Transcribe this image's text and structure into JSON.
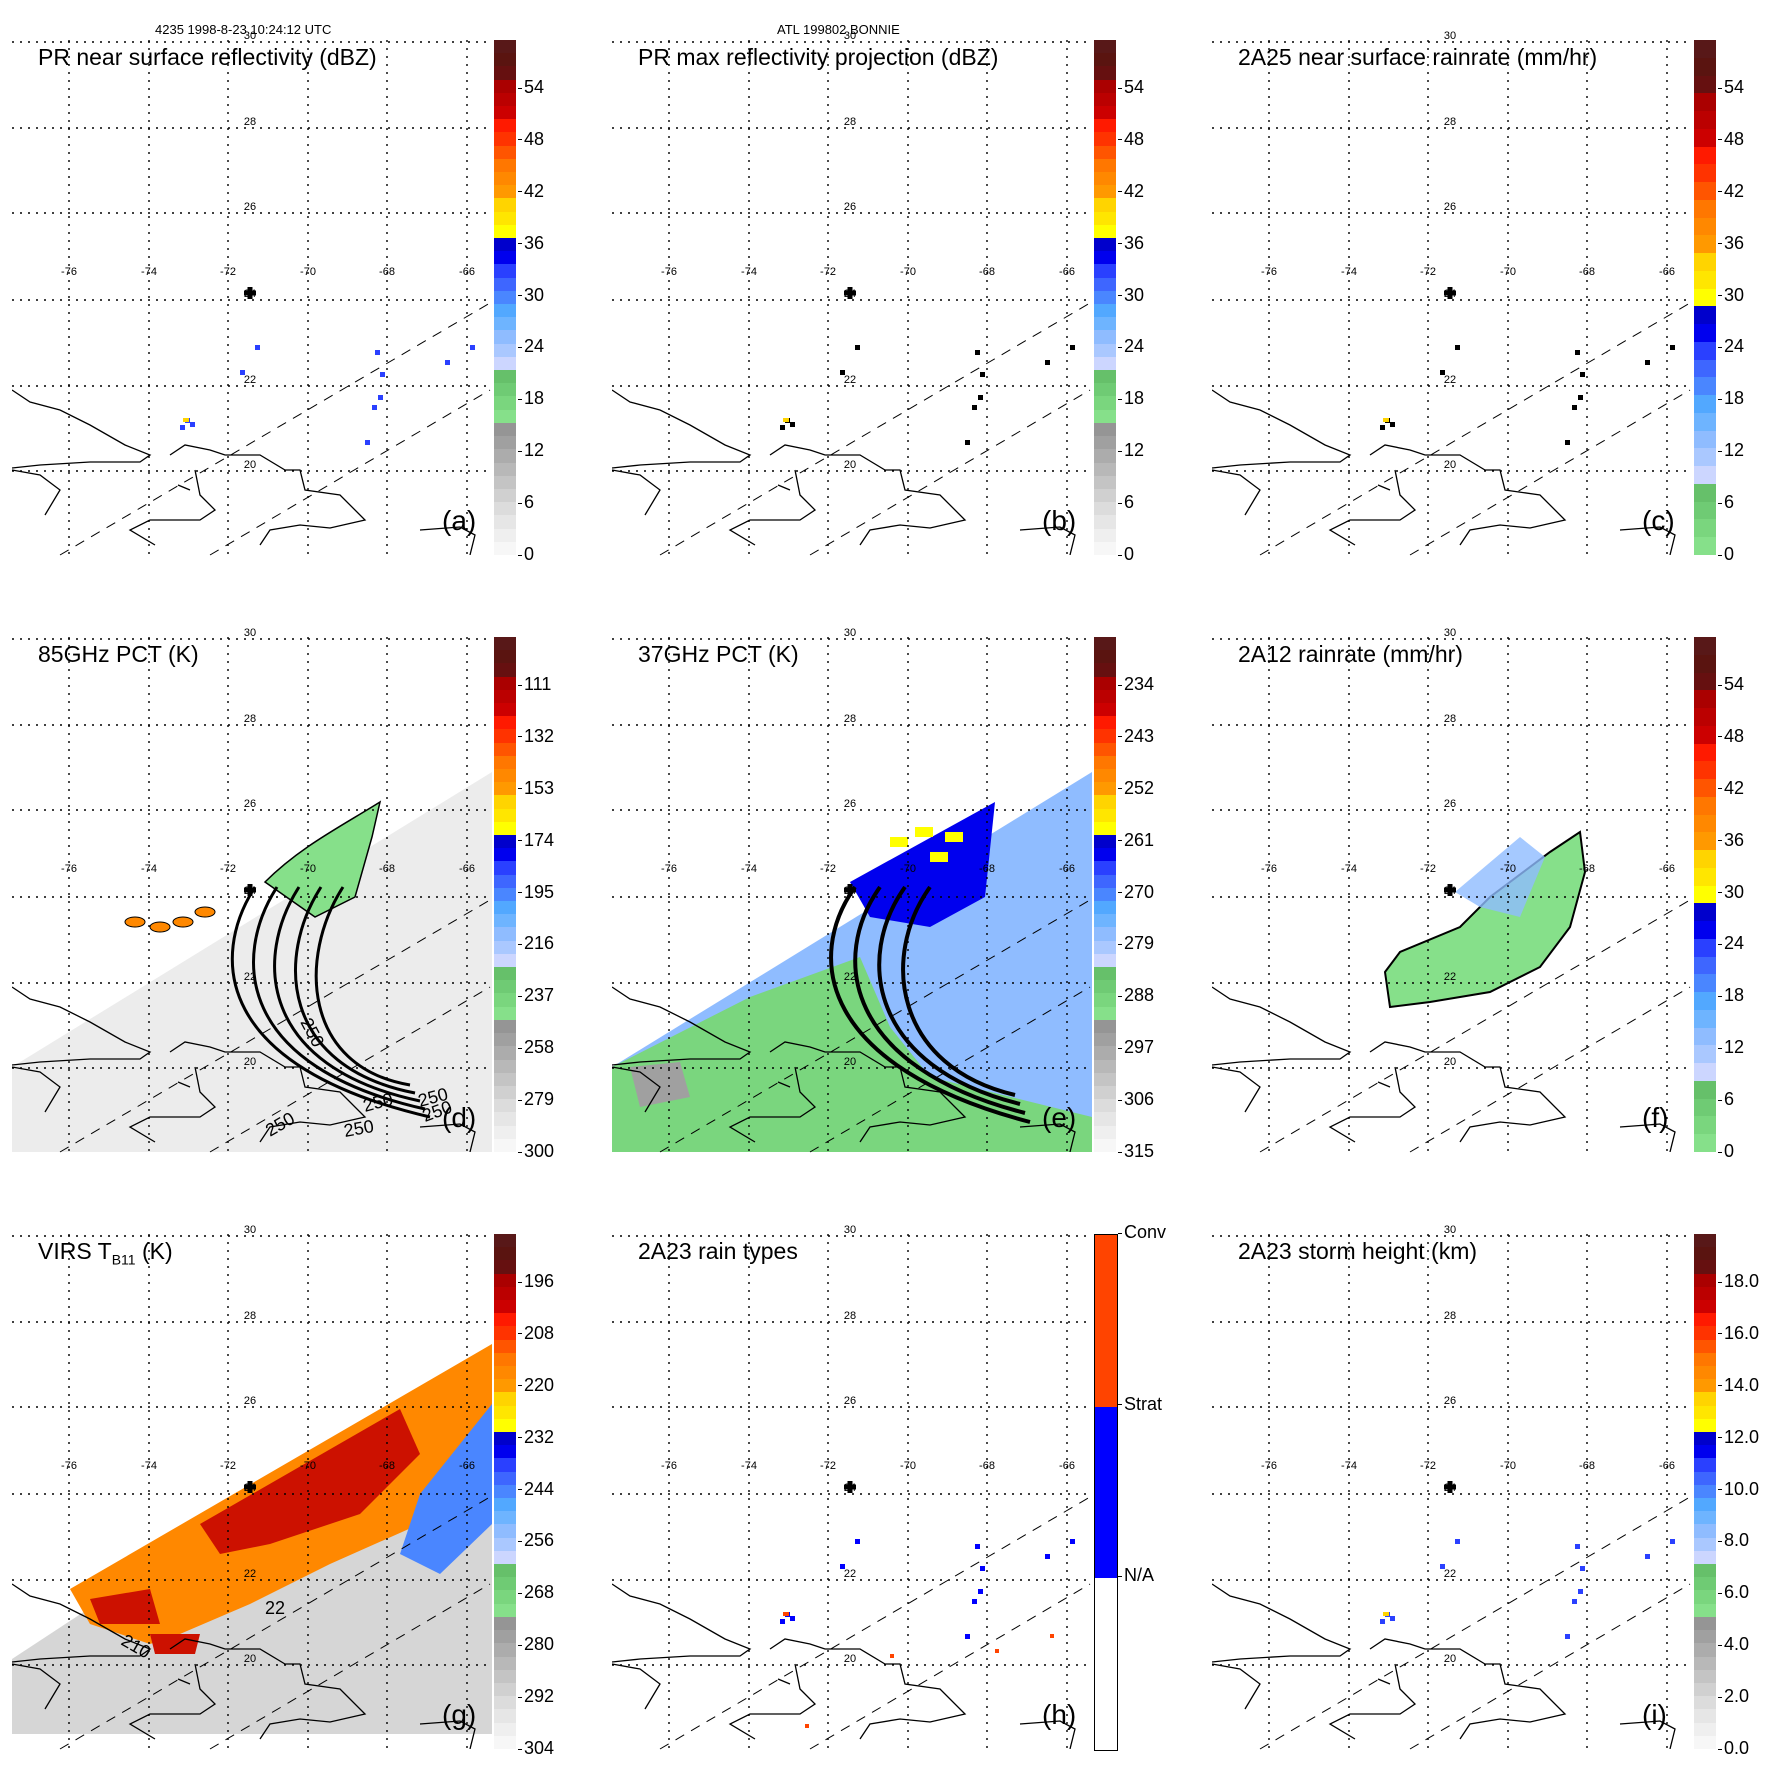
{
  "header": {
    "left": "4235 1998-8-23 10:24:12 UTC",
    "center": "ATL 199802 BONNIE"
  },
  "map": {
    "lon_labels": [
      "-76",
      "-74",
      "-72",
      "-70",
      "-68",
      "-66"
    ],
    "lat_labels": [
      "30",
      "28",
      "26",
      "24",
      "22",
      "20"
    ],
    "center_marker": "storm-center-cross"
  },
  "panels": [
    {
      "id": "a",
      "title": "PR near surface reflectivity (dBZ)",
      "label": "(a)",
      "cbar_ticks": [
        "54",
        "48",
        "42",
        "36",
        "30",
        "24",
        "18",
        "12",
        "6",
        "0"
      ],
      "cbar_type": "standard"
    },
    {
      "id": "b",
      "title": "PR max reflectivity projection (dBZ)",
      "label": "(b)",
      "cbar_ticks": [
        "54",
        "48",
        "42",
        "36",
        "30",
        "24",
        "18",
        "12",
        "6",
        "0"
      ],
      "cbar_type": "standard"
    },
    {
      "id": "c",
      "title": "2A25 near surface rainrate (mm/hr)",
      "label": "(c)",
      "cbar_ticks": [
        "54",
        "48",
        "42",
        "36",
        "30",
        "24",
        "18",
        "12",
        "6",
        "0"
      ],
      "cbar_type": "rain"
    },
    {
      "id": "d",
      "title": "85GHz PCT (K)",
      "label": "(d)",
      "cbar_ticks": [
        "111",
        "132",
        "153",
        "174",
        "195",
        "216",
        "237",
        "258",
        "279",
        "300"
      ],
      "cbar_type": "standard",
      "contour_labels": [
        "250",
        "250",
        "250",
        "250",
        "250",
        "250"
      ]
    },
    {
      "id": "e",
      "title": "37GHz PCT (K)",
      "label": "(e)",
      "cbar_ticks": [
        "234",
        "243",
        "252",
        "261",
        "270",
        "279",
        "288",
        "297",
        "306",
        "315"
      ],
      "cbar_type": "standard"
    },
    {
      "id": "f",
      "title": "2A12 rainrate (mm/hr)",
      "label": "(f)",
      "cbar_ticks": [
        "54",
        "48",
        "42",
        "36",
        "30",
        "24",
        "18",
        "12",
        "6",
        "0"
      ],
      "cbar_type": "rain"
    },
    {
      "id": "g",
      "title_main": "VIRS T",
      "title_sub": "B11",
      "title_unit": " (K)",
      "label": "(g)",
      "cbar_ticks": [
        "196",
        "208",
        "220",
        "232",
        "244",
        "256",
        "268",
        "280",
        "292",
        "304"
      ],
      "cbar_type": "standard",
      "contour_labels": [
        "210",
        "22"
      ]
    },
    {
      "id": "h",
      "title": "2A23 rain types",
      "label": "(h)",
      "cbar_ticks": [
        "Conv",
        "Strat",
        "N/A"
      ],
      "cbar_type": "categorical"
    },
    {
      "id": "i",
      "title": "2A23 storm height (km)",
      "label": "(i)",
      "cbar_ticks": [
        "18.0",
        "16.0",
        "14.0",
        "12.0",
        "10.0",
        "8.0",
        "6.0",
        "4.0",
        "2.0",
        "0.0"
      ],
      "cbar_type": "standard"
    }
  ],
  "colors": {
    "standard": [
      "#f7f7f7",
      "#efefef",
      "#e6e6e6",
      "#dcdcdc",
      "#d0d0d0",
      "#c4c4c4",
      "#b8b8b8",
      "#acacac",
      "#a0a0a0",
      "#959595",
      "#86e08a",
      "#7ad67e",
      "#6fcb74",
      "#66c06a",
      "#ccd6ff",
      "#aac8ff",
      "#8fbcff",
      "#6eb4ff",
      "#52a8ff",
      "#4a86ff",
      "#3e66ff",
      "#2a40ff",
      "#0000ee",
      "#0000cc",
      "#ffff00",
      "#ffe600",
      "#ffd400",
      "#ff9900",
      "#ff8800",
      "#ff7700",
      "#ff5500",
      "#ff3300",
      "#ff1a00",
      "#cc0000",
      "#bb0000",
      "#aa0000",
      "#661010",
      "#5a1410",
      "#581818"
    ],
    "rain": [
      "#86e08a",
      "#7ad67e",
      "#6fcb74",
      "#66c06a",
      "#ccd6ff",
      "#aac8ff",
      "#8fbcff",
      "#6eb4ff",
      "#52a8ff",
      "#4a86ff",
      "#3e66ff",
      "#2a40ff",
      "#0000ee",
      "#0000cc",
      "#ffff00",
      "#ffe600",
      "#ffd400",
      "#ff9900",
      "#ff8800",
      "#ff7700",
      "#ff5500",
      "#ff3300",
      "#ff1a00",
      "#cc0000",
      "#bb0000",
      "#aa0000",
      "#661010",
      "#5a1410",
      "#581818"
    ],
    "categorical": [
      "#ffffff",
      "#0000ff",
      "#ff4400"
    ],
    "land_outline": "#000000",
    "grid": "#000000"
  }
}
